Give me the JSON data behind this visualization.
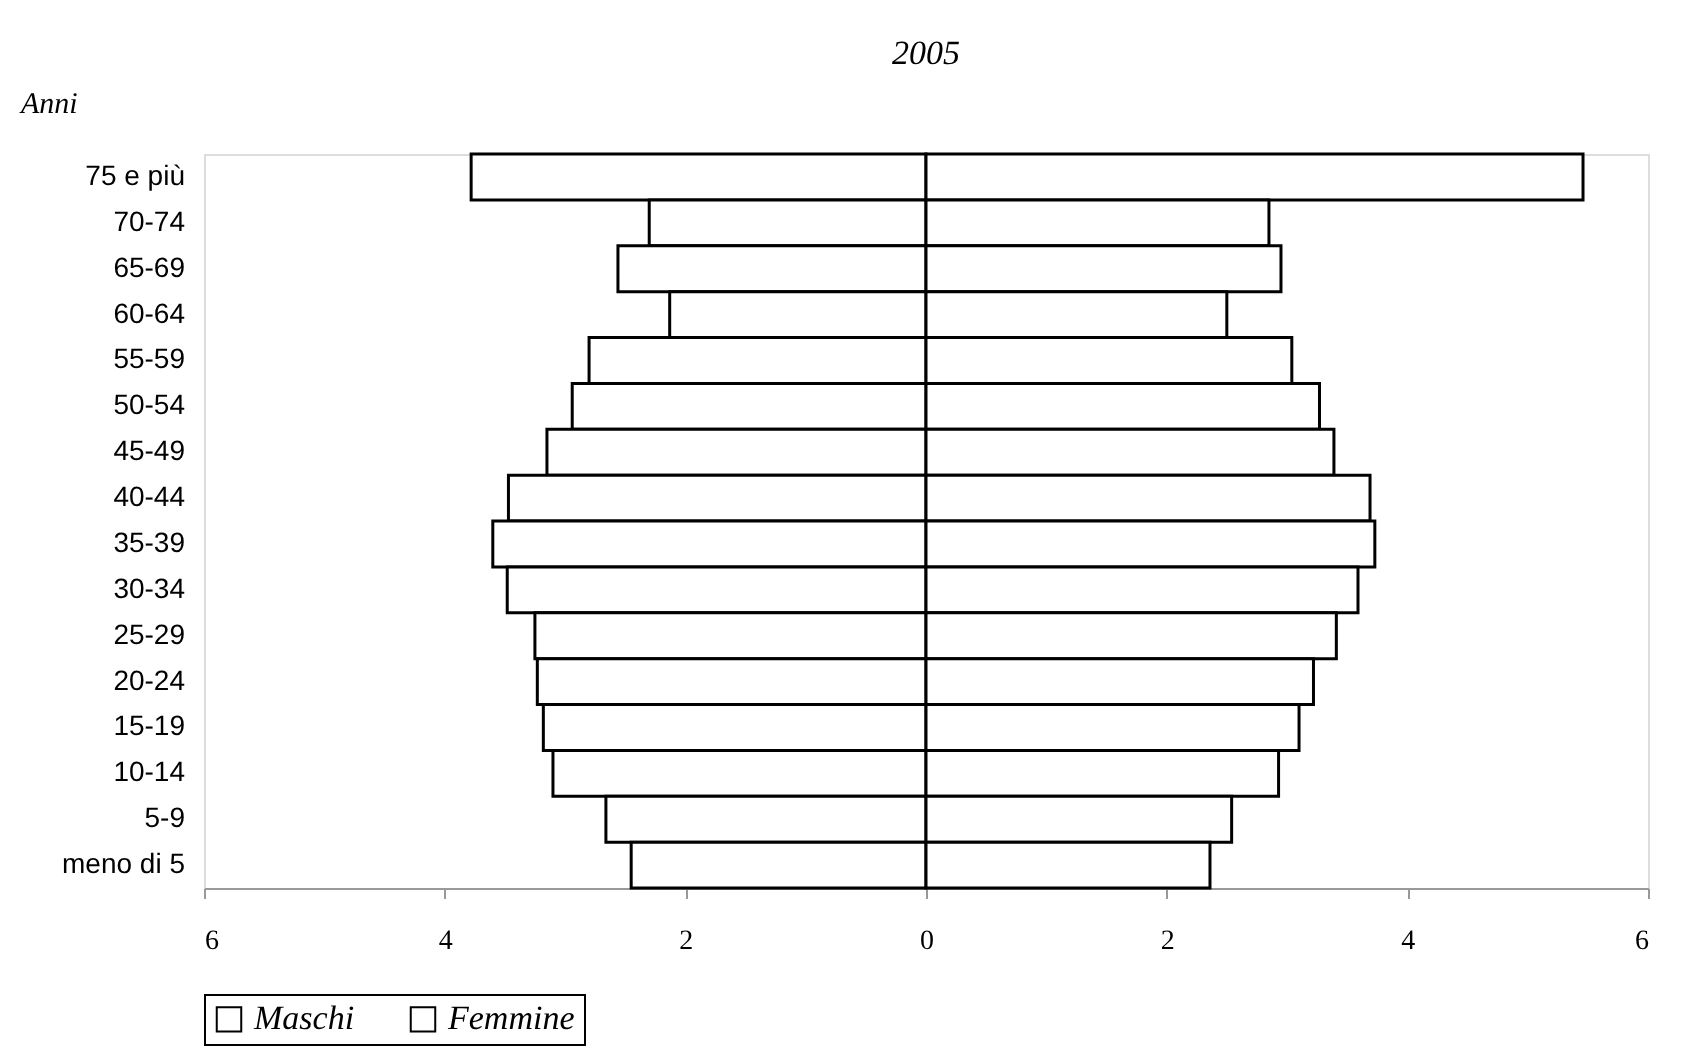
{
  "chart_data": {
    "type": "bar",
    "orientation": "horizontal",
    "title": "2005",
    "ylabel": "Anni",
    "categories": [
      "75 e più",
      "70-74",
      "65-69",
      "60-64",
      "55-59",
      "50-54",
      "45-49",
      "40-44",
      "35-39",
      "30-34",
      "25-29",
      "20-24",
      "15-19",
      "10-14",
      "5-9",
      "meno di 5"
    ],
    "series": [
      {
        "name": "Maschi",
        "color": "#ffffff",
        "values": [
          -3.78,
          -2.3,
          -2.56,
          -2.13,
          -2.8,
          -2.94,
          -3.15,
          -3.47,
          -3.6,
          -3.48,
          -3.25,
          -3.23,
          -3.18,
          -3.1,
          -2.66,
          -2.45
        ]
      },
      {
        "name": "Femmine",
        "color": "#ffffff",
        "values": [
          5.46,
          2.85,
          2.95,
          2.5,
          3.04,
          3.27,
          3.39,
          3.69,
          3.73,
          3.59,
          3.41,
          3.22,
          3.1,
          2.93,
          2.54,
          2.36
        ]
      }
    ],
    "xlim": [
      -6,
      6
    ],
    "xticks": [
      {
        "value": -6,
        "label": "6"
      },
      {
        "value": -4,
        "label": "4"
      },
      {
        "value": -2,
        "label": "2"
      },
      0,
      2,
      4,
      6
    ],
    "stacked": true,
    "grid": false,
    "legend": "bottom"
  }
}
